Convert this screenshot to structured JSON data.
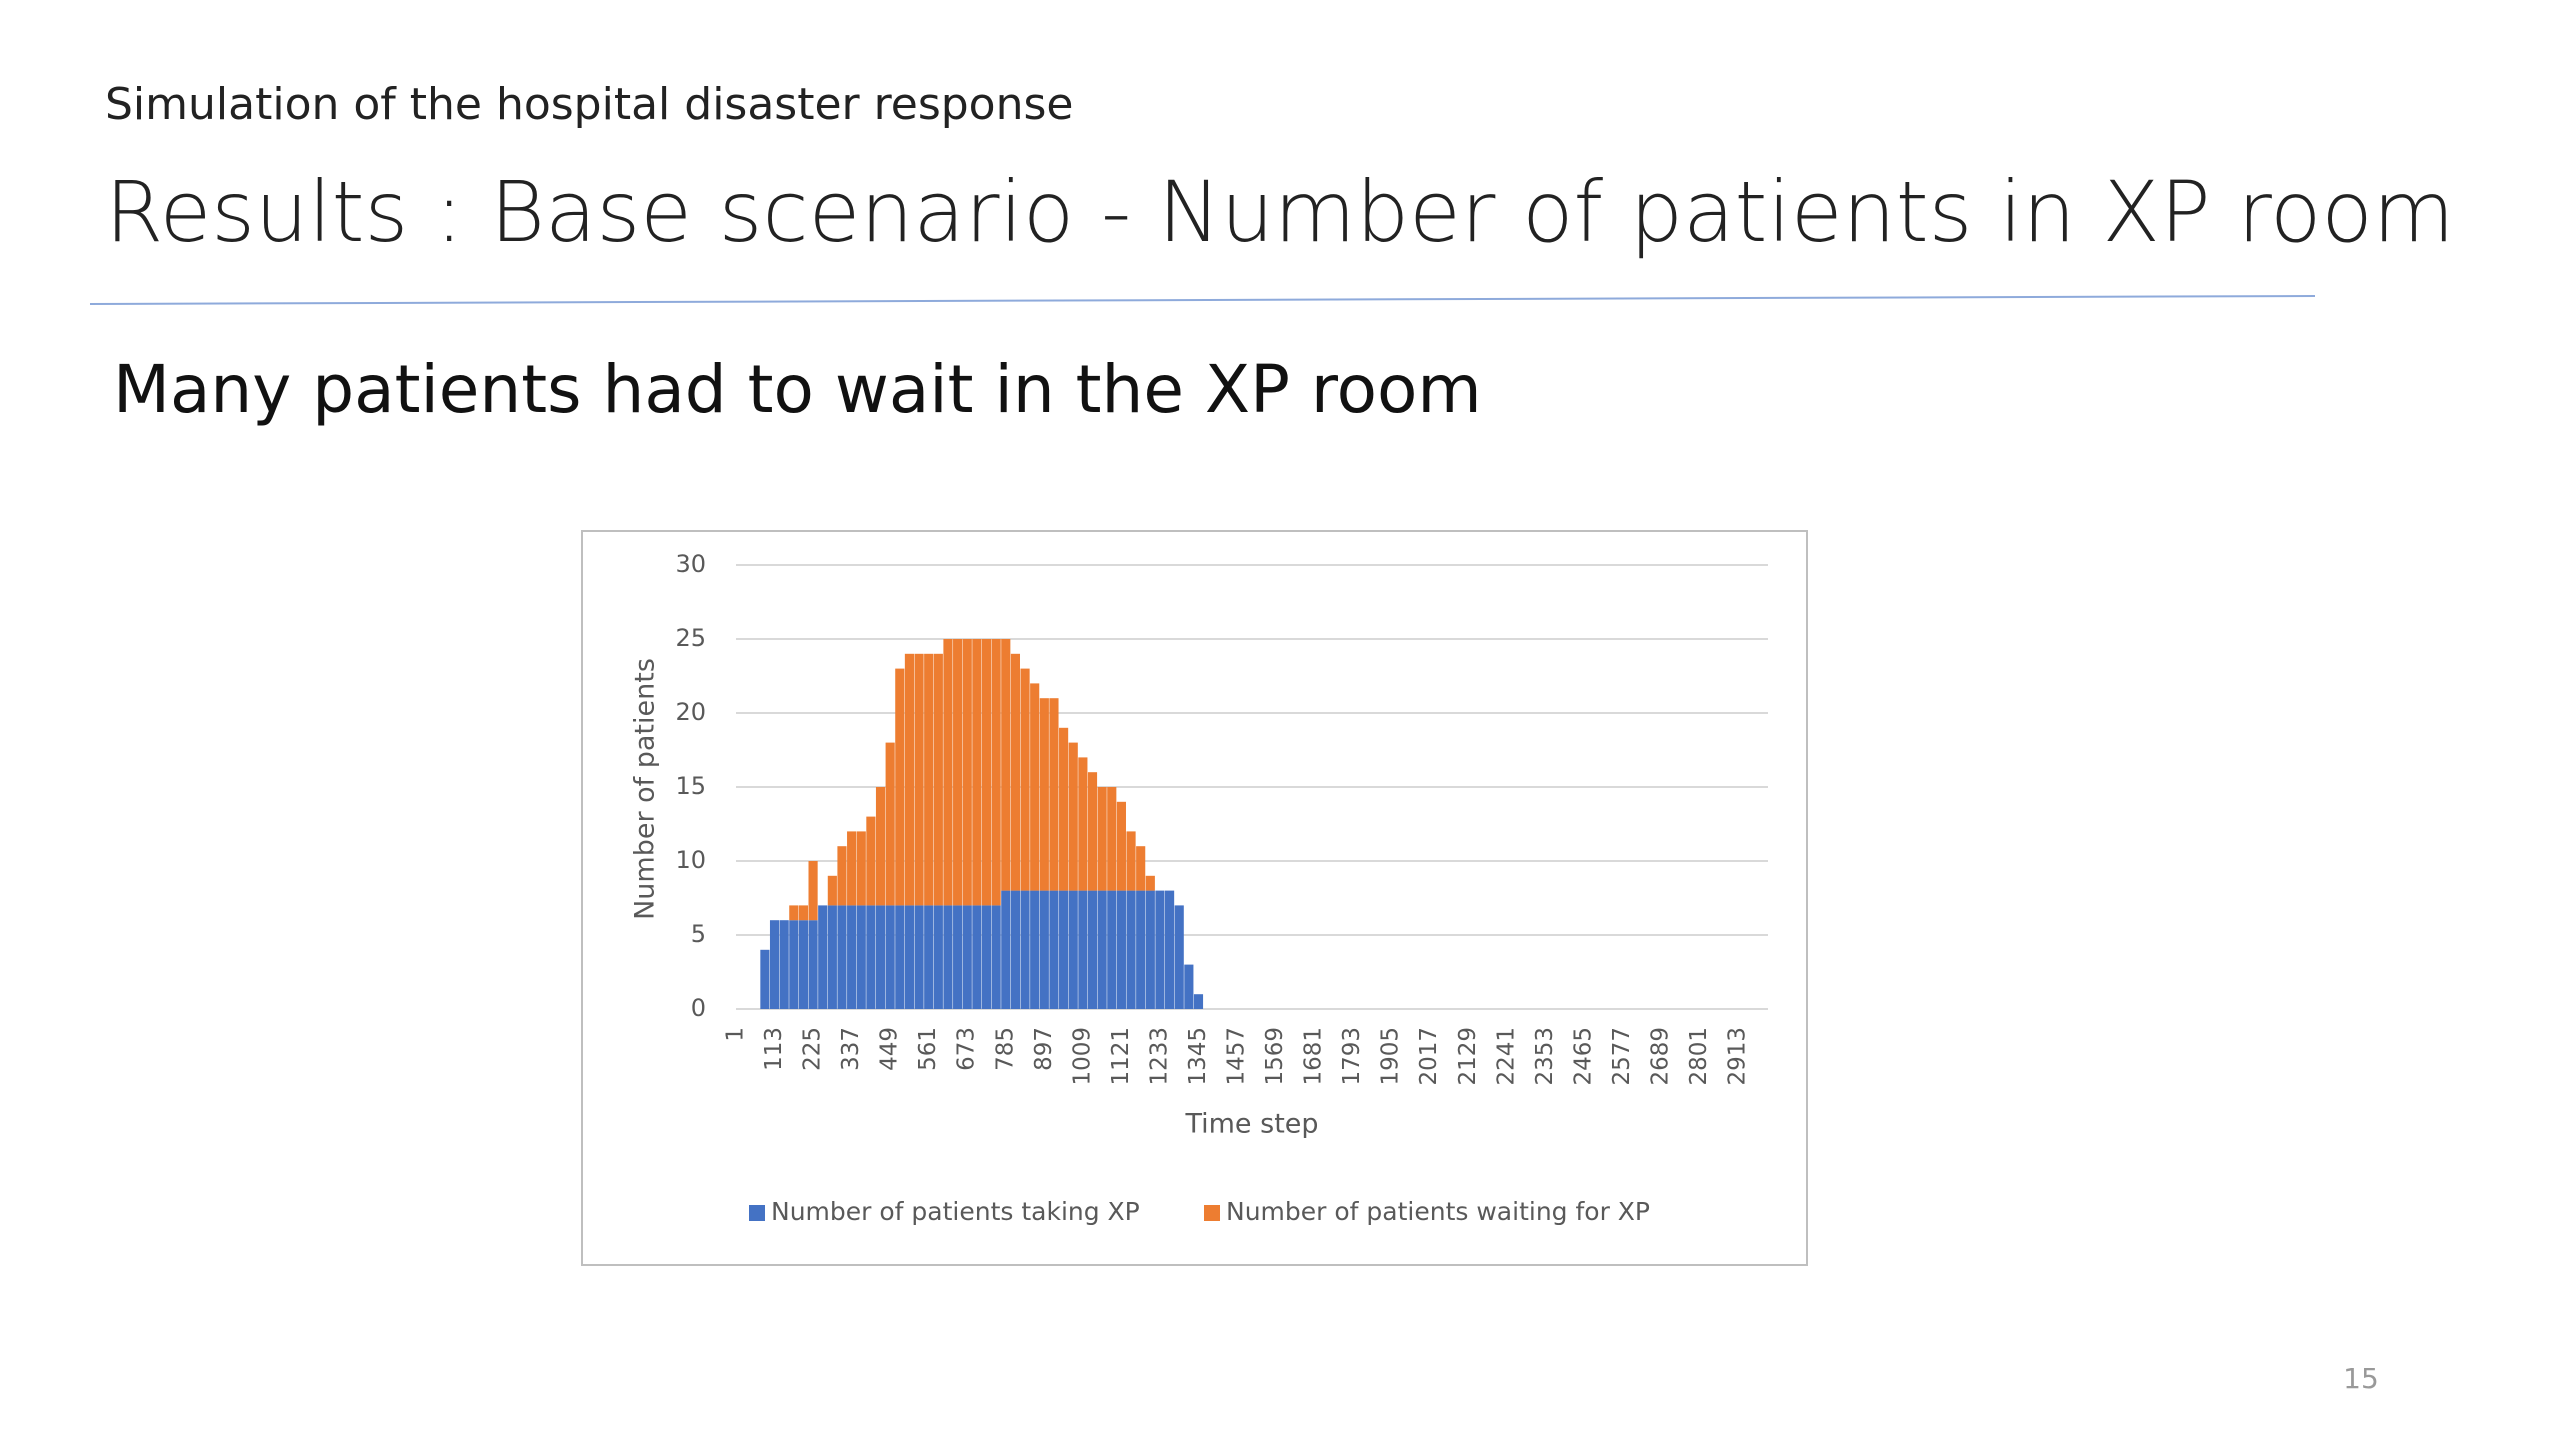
{
  "slide": {
    "subtitle": "Simulation of the hospital disaster response",
    "title": "Results : Base scenario - Number of patients in XP room",
    "bullet": "Many patients had to wait in the XP room",
    "page_number": "15"
  },
  "chart_data": {
    "type": "stacked_bar",
    "x_label": "Time step",
    "y_label": "Number of patients",
    "x": [
      57,
      85,
      113,
      141,
      169,
      197,
      225,
      253,
      281,
      309,
      337,
      365,
      393,
      421,
      449,
      477,
      505,
      533,
      561,
      589,
      617,
      645,
      673,
      701,
      729,
      757,
      785,
      813,
      841,
      869,
      897,
      925,
      953,
      981,
      1009,
      1037,
      1065,
      1093,
      1121,
      1149,
      1177,
      1205,
      1233,
      1261,
      1289,
      1317,
      1345
    ],
    "series": [
      {
        "name": "Number of patients taking XP",
        "color": "#4472c4",
        "values": [
          0,
          4,
          6,
          6,
          6,
          6,
          6,
          7,
          7,
          7,
          7,
          7,
          7,
          7,
          7,
          7,
          7,
          7,
          7,
          7,
          7,
          7,
          7,
          7,
          7,
          7,
          8,
          8,
          8,
          8,
          8,
          8,
          8,
          8,
          8,
          8,
          8,
          8,
          8,
          8,
          8,
          8,
          8,
          8,
          7,
          3,
          1
        ]
      },
      {
        "name": "Number of patients waiting for XP",
        "color": "#ed7d31",
        "values": [
          0,
          0,
          0,
          0,
          1,
          1,
          4,
          0,
          2,
          4,
          5,
          5,
          6,
          8,
          11,
          16,
          17,
          17,
          17,
          17,
          18,
          18,
          18,
          18,
          18,
          18,
          17,
          16,
          15,
          14,
          13,
          13,
          11,
          10,
          9,
          8,
          7,
          7,
          6,
          4,
          3,
          1,
          0,
          0,
          0,
          0,
          0
        ]
      }
    ],
    "xlim": [
      1,
      3000
    ],
    "xticks": [
      1,
      113,
      225,
      337,
      449,
      561,
      673,
      785,
      897,
      1009,
      1121,
      1233,
      1345,
      1457,
      1569,
      1681,
      1793,
      1905,
      2017,
      2129,
      2241,
      2353,
      2465,
      2577,
      2689,
      2801,
      2913
    ],
    "ylim": [
      0,
      30
    ],
    "yticks": [
      0,
      5,
      10,
      15,
      20,
      25,
      30
    ],
    "grid": true,
    "legend": "bottom"
  }
}
